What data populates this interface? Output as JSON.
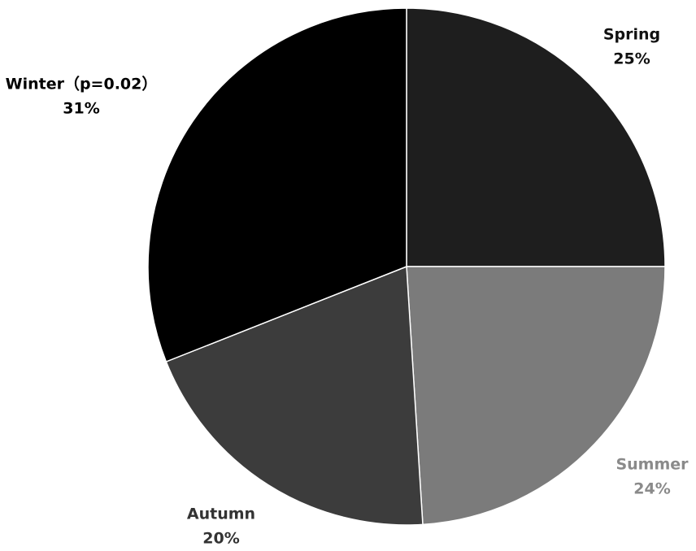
{
  "chart_data": {
    "type": "pie",
    "categories": [
      "Spring",
      "Summer",
      "Autumn",
      "Winter（p=0.02）"
    ],
    "values": [
      25,
      24,
      20,
      31
    ],
    "value_labels": [
      "25%",
      "24%",
      "20%",
      "31%"
    ],
    "colors": [
      "#1e1e1e",
      "#7b7b7b",
      "#3c3c3c",
      "#000000"
    ]
  }
}
